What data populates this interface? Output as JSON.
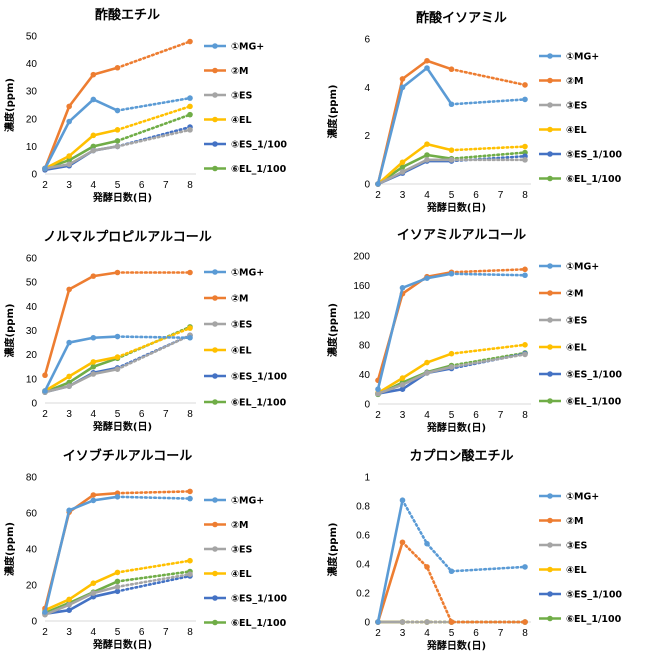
{
  "legend_labels": [
    "①MG+",
    "②M",
    "③ES",
    "④EL",
    "⑤ES_1/100",
    "⑥EL_1/100"
  ],
  "series_colors": [
    "#5B9BD5",
    "#ED7D31",
    "#A5A5A5",
    "#FFC000",
    "#4472C4",
    "#70AD47"
  ],
  "chart_data": [
    {
      "type": "line",
      "title": "酢酸エチル",
      "xlabel": "発酵日数(日)",
      "ylabel": "濃度(ppm)",
      "x_ticks": [
        2,
        3,
        4,
        5,
        6,
        7,
        8
      ],
      "y_ticks": [
        "0",
        "10",
        "20",
        "30",
        "40",
        "50"
      ],
      "ylim": [
        0,
        50
      ],
      "solid_through_x": 5,
      "series": [
        {
          "name": "①MG+",
          "x": [
            2,
            3,
            4,
            5,
            8
          ],
          "values": [
            2,
            19,
            27,
            23,
            27.5
          ]
        },
        {
          "name": "②M",
          "x": [
            2,
            3,
            4,
            5,
            8
          ],
          "values": [
            2,
            24.5,
            36,
            38.5,
            48
          ]
        },
        {
          "name": "③ES",
          "x": [
            2,
            3,
            4,
            5,
            8
          ],
          "values": [
            2,
            3.5,
            8.5,
            10,
            16
          ]
        },
        {
          "name": "④EL",
          "x": [
            2,
            3,
            4,
            5,
            8
          ],
          "values": [
            2,
            6.5,
            14,
            16,
            24.5
          ]
        },
        {
          "name": "⑤ES_1/100",
          "x": [
            2,
            3,
            4,
            5,
            8
          ],
          "values": [
            1.5,
            3,
            8.5,
            10,
            17
          ]
        },
        {
          "name": "⑥EL_1/100",
          "x": [
            2,
            3,
            4,
            5,
            8
          ],
          "values": [
            2,
            5,
            10,
            12,
            21.5
          ]
        }
      ]
    },
    {
      "type": "line",
      "title": "酢酸イソアミル",
      "xlabel": "発酵日数(日)",
      "ylabel": "濃度(ppm)",
      "x_ticks": [
        2,
        3,
        4,
        5,
        6,
        7,
        8
      ],
      "y_ticks": [
        "0",
        "2",
        "4",
        "6"
      ],
      "ylim": [
        0,
        6
      ],
      "solid_through_x": 5,
      "series": [
        {
          "name": "①MG+",
          "x": [
            2,
            3,
            4,
            5,
            8
          ],
          "values": [
            0,
            4.0,
            4.8,
            3.3,
            3.5
          ]
        },
        {
          "name": "②M",
          "x": [
            2,
            3,
            4,
            5,
            8
          ],
          "values": [
            0,
            4.35,
            5.1,
            4.75,
            4.1
          ]
        },
        {
          "name": "③ES",
          "x": [
            2,
            3,
            4,
            5,
            8
          ],
          "values": [
            0,
            0.5,
            1.0,
            1.0,
            1.0
          ]
        },
        {
          "name": "④EL",
          "x": [
            2,
            3,
            4,
            5,
            8
          ],
          "values": [
            0,
            0.9,
            1.65,
            1.4,
            1.55
          ]
        },
        {
          "name": "⑤ES_1/100",
          "x": [
            2,
            3,
            4,
            5,
            8
          ],
          "values": [
            0,
            0.45,
            0.95,
            0.95,
            1.15
          ]
        },
        {
          "name": "⑥EL_1/100",
          "x": [
            2,
            3,
            4,
            5,
            8
          ],
          "values": [
            0,
            0.7,
            1.2,
            1.05,
            1.3
          ]
        }
      ]
    },
    {
      "type": "line",
      "title": "ノルマルプロピルアルコール",
      "xlabel": "発酵日数(日)",
      "ylabel": "濃度(ppm)",
      "x_ticks": [
        2,
        3,
        4,
        5,
        6,
        7,
        8
      ],
      "y_ticks": [
        "0",
        "10",
        "20",
        "30",
        "40",
        "50",
        "60"
      ],
      "ylim": [
        0,
        60
      ],
      "solid_through_x": 5,
      "series": [
        {
          "name": "①MG+",
          "x": [
            2,
            3,
            4,
            5,
            8
          ],
          "values": [
            5,
            25,
            27,
            27.5,
            27
          ]
        },
        {
          "name": "②M",
          "x": [
            2,
            3,
            4,
            5,
            8
          ],
          "values": [
            11.5,
            47,
            52.5,
            54,
            54
          ]
        },
        {
          "name": "③ES",
          "x": [
            2,
            3,
            4,
            5,
            8
          ],
          "values": [
            4.5,
            7,
            12,
            14,
            28
          ]
        },
        {
          "name": "④EL",
          "x": [
            2,
            3,
            4,
            5,
            8
          ],
          "values": [
            5,
            11,
            17,
            19,
            31
          ]
        },
        {
          "name": "⑤ES_1/100",
          "x": [
            2,
            3,
            4,
            5,
            8
          ],
          "values": [
            4.5,
            7,
            12.5,
            14.5,
            28
          ]
        },
        {
          "name": "⑥EL_1/100",
          "x": [
            2,
            3,
            4,
            5,
            8
          ],
          "values": [
            4.5,
            8.5,
            15,
            18.5,
            31.5
          ]
        }
      ]
    },
    {
      "type": "line",
      "title": "イソアミルアルコール",
      "xlabel": "発酵日数(日)",
      "ylabel": "濃度(ppm)",
      "x_ticks": [
        2,
        3,
        4,
        5,
        6,
        7,
        8
      ],
      "y_ticks": [
        "0",
        "40",
        "80",
        "120",
        "160",
        "200"
      ],
      "ylim": [
        0,
        200
      ],
      "solid_through_x": 5,
      "series": [
        {
          "name": "①MG+",
          "x": [
            2,
            3,
            4,
            5,
            8
          ],
          "values": [
            20,
            157,
            170,
            176,
            174
          ]
        },
        {
          "name": "②M",
          "x": [
            2,
            3,
            4,
            5,
            8
          ],
          "values": [
            32,
            149,
            172,
            178,
            182
          ]
        },
        {
          "name": "③ES",
          "x": [
            2,
            3,
            4,
            5,
            8
          ],
          "values": [
            14,
            26,
            42,
            50,
            67
          ]
        },
        {
          "name": "④EL",
          "x": [
            2,
            3,
            4,
            5,
            8
          ],
          "values": [
            15,
            35,
            56,
            68,
            80
          ]
        },
        {
          "name": "⑤ES_1/100",
          "x": [
            2,
            3,
            4,
            5,
            8
          ],
          "values": [
            14,
            20,
            42,
            48,
            68
          ]
        },
        {
          "name": "⑥EL_1/100",
          "x": [
            2,
            3,
            4,
            5,
            8
          ],
          "values": [
            13,
            29,
            43,
            52,
            69
          ]
        }
      ]
    },
    {
      "type": "line",
      "title": "イソブチルアルコール",
      "xlabel": "発酵日数(日)",
      "ylabel": "濃度(ppm)",
      "x_ticks": [
        2,
        3,
        4,
        5,
        6,
        7,
        8
      ],
      "y_ticks": [
        "0",
        "20",
        "40",
        "60",
        "80"
      ],
      "ylim": [
        0,
        80
      ],
      "solid_through_x": 5,
      "series": [
        {
          "name": "①MG+",
          "x": [
            2,
            3,
            4,
            5,
            8
          ],
          "values": [
            5,
            61.5,
            67,
            69,
            68
          ]
        },
        {
          "name": "②M",
          "x": [
            2,
            3,
            4,
            5,
            8
          ],
          "values": [
            7,
            60.5,
            70,
            71,
            72
          ]
        },
        {
          "name": "③ES",
          "x": [
            2,
            3,
            4,
            5,
            8
          ],
          "values": [
            3.5,
            9,
            15.5,
            19,
            26
          ]
        },
        {
          "name": "④EL",
          "x": [
            2,
            3,
            4,
            5,
            8
          ],
          "values": [
            6,
            12,
            21,
            27,
            33.5
          ]
        },
        {
          "name": "⑤ES_1/100",
          "x": [
            2,
            3,
            4,
            5,
            8
          ],
          "values": [
            4,
            6,
            13.5,
            16.5,
            25
          ]
        },
        {
          "name": "⑥EL_1/100",
          "x": [
            2,
            3,
            4,
            5,
            8
          ],
          "values": [
            4.5,
            10,
            16,
            22,
            27.5
          ]
        }
      ]
    },
    {
      "type": "line",
      "title": "カプロン酸エチル",
      "xlabel": "発酵日数(日)",
      "ylabel": "濃度(ppm)",
      "x_ticks": [
        2,
        3,
        4,
        5,
        6,
        7,
        8
      ],
      "y_ticks": [
        "0",
        "0.2",
        "0.4",
        "0.6",
        "0.8",
        "1"
      ],
      "ylim": [
        0,
        1
      ],
      "solid_through_x": 3,
      "series": [
        {
          "name": "①MG+",
          "x": [
            2,
            3,
            4,
            5,
            8
          ],
          "values": [
            0,
            0.84,
            0.54,
            0.35,
            0.38
          ]
        },
        {
          "name": "②M",
          "x": [
            2,
            3,
            4,
            5,
            8
          ],
          "values": [
            0,
            0.55,
            0.38,
            0,
            0
          ]
        },
        {
          "name": "③ES",
          "x": [
            2,
            3,
            4,
            5,
            8
          ],
          "values": [
            0,
            0,
            0,
            0,
            0
          ]
        },
        {
          "name": "④EL",
          "x": [
            2,
            3,
            4,
            5,
            8
          ],
          "values": [
            0,
            0,
            0,
            0,
            0
          ]
        },
        {
          "name": "⑤ES_1/100",
          "x": [
            2,
            3,
            4,
            5,
            8
          ],
          "values": [
            0,
            0,
            0,
            0,
            0
          ]
        },
        {
          "name": "⑥EL_1/100",
          "x": [
            2,
            3,
            4,
            5,
            8
          ],
          "values": [
            0,
            0,
            0,
            0,
            0
          ]
        }
      ]
    }
  ]
}
